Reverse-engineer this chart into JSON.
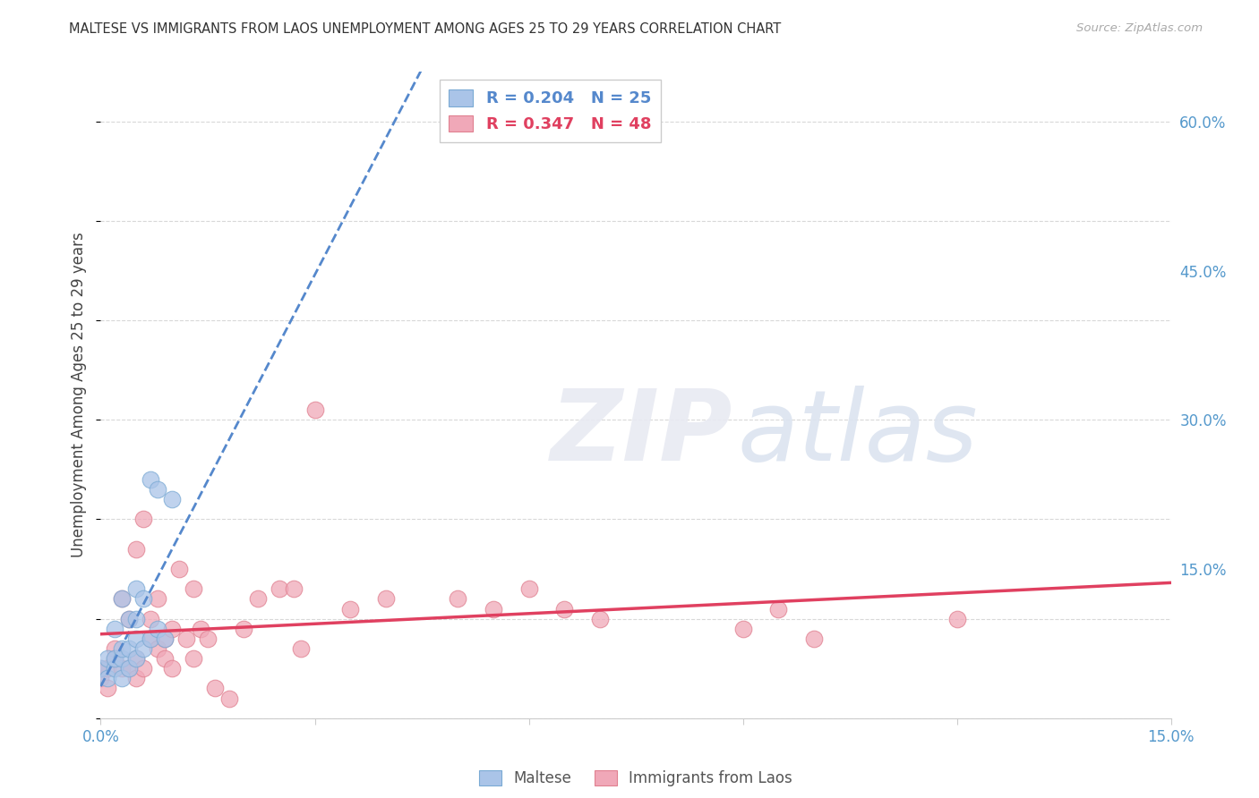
{
  "title": "MALTESE VS IMMIGRANTS FROM LAOS UNEMPLOYMENT AMONG AGES 25 TO 29 YEARS CORRELATION CHART",
  "source": "Source: ZipAtlas.com",
  "ylabel": "Unemployment Among Ages 25 to 29 years",
  "xlim": [
    0.0,
    0.15
  ],
  "ylim": [
    0.0,
    0.65
  ],
  "xticks": [
    0.0,
    0.03,
    0.06,
    0.09,
    0.12,
    0.15
  ],
  "yticks_right": [
    0.0,
    0.15,
    0.3,
    0.45,
    0.6
  ],
  "ytick_right_labels": [
    "",
    "15.0%",
    "30.0%",
    "45.0%",
    "60.0%"
  ],
  "xtick_labels": [
    "0.0%",
    "",
    "",
    "",
    "",
    "15.0%"
  ],
  "background_color": "#ffffff",
  "grid_color": "#d8d8d8",
  "maltese_color": "#aac4e8",
  "maltese_edge_color": "#7aaad4",
  "laos_color": "#f0a8b8",
  "laos_edge_color": "#e08090",
  "maltese_line_color": "#5588cc",
  "laos_line_color": "#e04060",
  "maltese_x": [
    0.0,
    0.001,
    0.001,
    0.002,
    0.002,
    0.002,
    0.003,
    0.003,
    0.003,
    0.003,
    0.004,
    0.004,
    0.004,
    0.005,
    0.005,
    0.005,
    0.005,
    0.006,
    0.006,
    0.007,
    0.007,
    0.008,
    0.008,
    0.009,
    0.01
  ],
  "maltese_y": [
    0.05,
    0.04,
    0.06,
    0.05,
    0.06,
    0.09,
    0.04,
    0.06,
    0.07,
    0.12,
    0.05,
    0.07,
    0.1,
    0.06,
    0.08,
    0.1,
    0.13,
    0.07,
    0.12,
    0.08,
    0.24,
    0.09,
    0.23,
    0.08,
    0.22
  ],
  "laos_x": [
    0.0,
    0.0,
    0.001,
    0.001,
    0.002,
    0.002,
    0.003,
    0.003,
    0.004,
    0.004,
    0.005,
    0.005,
    0.005,
    0.006,
    0.006,
    0.007,
    0.007,
    0.008,
    0.008,
    0.009,
    0.009,
    0.01,
    0.01,
    0.011,
    0.012,
    0.013,
    0.013,
    0.014,
    0.015,
    0.016,
    0.018,
    0.02,
    0.022,
    0.025,
    0.027,
    0.028,
    0.03,
    0.035,
    0.04,
    0.05,
    0.055,
    0.06,
    0.065,
    0.07,
    0.09,
    0.095,
    0.1,
    0.12
  ],
  "laos_y": [
    0.04,
    0.05,
    0.03,
    0.05,
    0.06,
    0.07,
    0.05,
    0.12,
    0.05,
    0.1,
    0.04,
    0.06,
    0.17,
    0.05,
    0.2,
    0.08,
    0.1,
    0.07,
    0.12,
    0.06,
    0.08,
    0.05,
    0.09,
    0.15,
    0.08,
    0.06,
    0.13,
    0.09,
    0.08,
    0.03,
    0.02,
    0.09,
    0.12,
    0.13,
    0.13,
    0.07,
    0.31,
    0.11,
    0.12,
    0.12,
    0.11,
    0.13,
    0.11,
    0.1,
    0.09,
    0.11,
    0.08,
    0.1
  ],
  "legend_items": [
    {
      "r": "R = 0.204",
      "n": "N = 25",
      "color": "#aac4e8",
      "edge": "#7aaad4",
      "text_color": "#5588cc"
    },
    {
      "r": "R = 0.347",
      "n": "N = 48",
      "color": "#f0a8b8",
      "edge": "#e08090",
      "text_color": "#e04060"
    }
  ],
  "bottom_legend": [
    {
      "label": "Maltese",
      "color": "#aac4e8",
      "edge": "#7aaad4"
    },
    {
      "label": "Immigrants from Laos",
      "color": "#f0a8b8",
      "edge": "#e08090"
    }
  ]
}
